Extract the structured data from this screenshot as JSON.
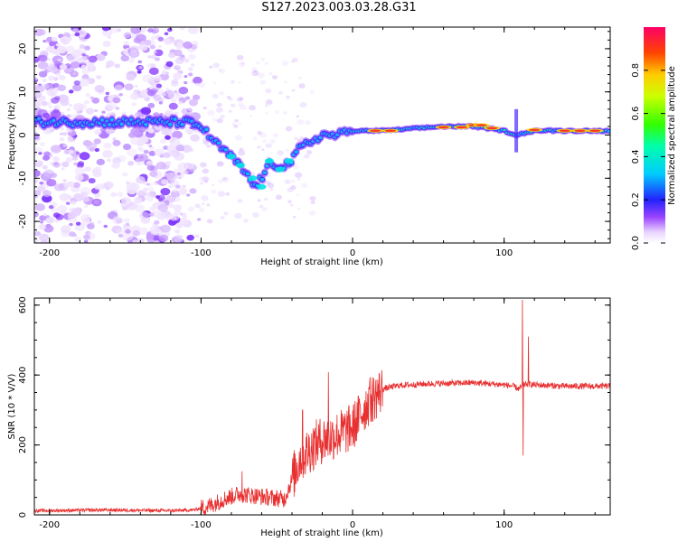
{
  "title": "S127.2023.003.03.28.G31",
  "chart_data": [
    {
      "type": "heatmap",
      "xlabel": "Height of straight line (km)",
      "ylabel": "Frequency (Hz)",
      "xlim": [
        -210,
        170
      ],
      "ylim": [
        -25,
        25
      ],
      "x_ticks": [
        -200,
        -100,
        0,
        100
      ],
      "y_ticks": [
        -20,
        -10,
        0,
        10,
        20
      ],
      "colorbar": {
        "label": "Normalized spectral amplitude",
        "range": [
          0,
          1
        ],
        "ticks": [
          0.0,
          0.2,
          0.4,
          0.6,
          0.8
        ]
      },
      "ridge": {
        "description_points_x": [
          -210,
          -160,
          -140,
          -125,
          -110,
          -100,
          -90,
          -80,
          -70,
          -65,
          -60,
          -55,
          -50,
          -45,
          -40,
          -35,
          -30,
          -20,
          -10,
          0,
          20,
          60,
          80,
          100,
          108,
          120,
          170
        ],
        "description_points_freq": [
          3,
          3,
          3,
          3,
          3,
          2,
          -2,
          -5,
          -9,
          -12,
          -10,
          -7,
          -7,
          -7,
          -6,
          -3,
          -2,
          0,
          0,
          1,
          1,
          2,
          2,
          1,
          0,
          1,
          1
        ]
      }
    },
    {
      "type": "line",
      "xlabel": "Height of straight line (km)",
      "ylabel": "SNR (10 * V/V)",
      "xlim": [
        -210,
        170
      ],
      "ylim": [
        0,
        620
      ],
      "x_ticks": [
        -200,
        -100,
        0,
        100
      ],
      "y_ticks": [
        0,
        200,
        400,
        600
      ],
      "color": "#e83030",
      "envelope_x": [
        -210,
        -160,
        -120,
        -105,
        -95,
        -85,
        -75,
        -65,
        -55,
        -45,
        -40,
        -35,
        -30,
        -25,
        -20,
        -15,
        -10,
        -5,
        0,
        10,
        20,
        30,
        50,
        80,
        100,
        106,
        110,
        112,
        115,
        120,
        140,
        170
      ],
      "envelope_y": [
        12,
        14,
        12,
        14,
        25,
        45,
        60,
        55,
        50,
        45,
        100,
        160,
        180,
        200,
        215,
        220,
        230,
        240,
        250,
        320,
        360,
        370,
        375,
        378,
        372,
        368,
        360,
        370,
        375,
        372,
        368,
        368
      ],
      "spikes": [
        {
          "x": -73,
          "y": 125
        },
        {
          "x": -33,
          "y": 300
        },
        {
          "x": -16,
          "y": 408
        },
        {
          "x": 11,
          "y": 360
        },
        {
          "x": 112,
          "y": 615
        },
        {
          "x": 112.5,
          "y": 170
        },
        {
          "x": 116,
          "y": 510
        }
      ]
    }
  ]
}
